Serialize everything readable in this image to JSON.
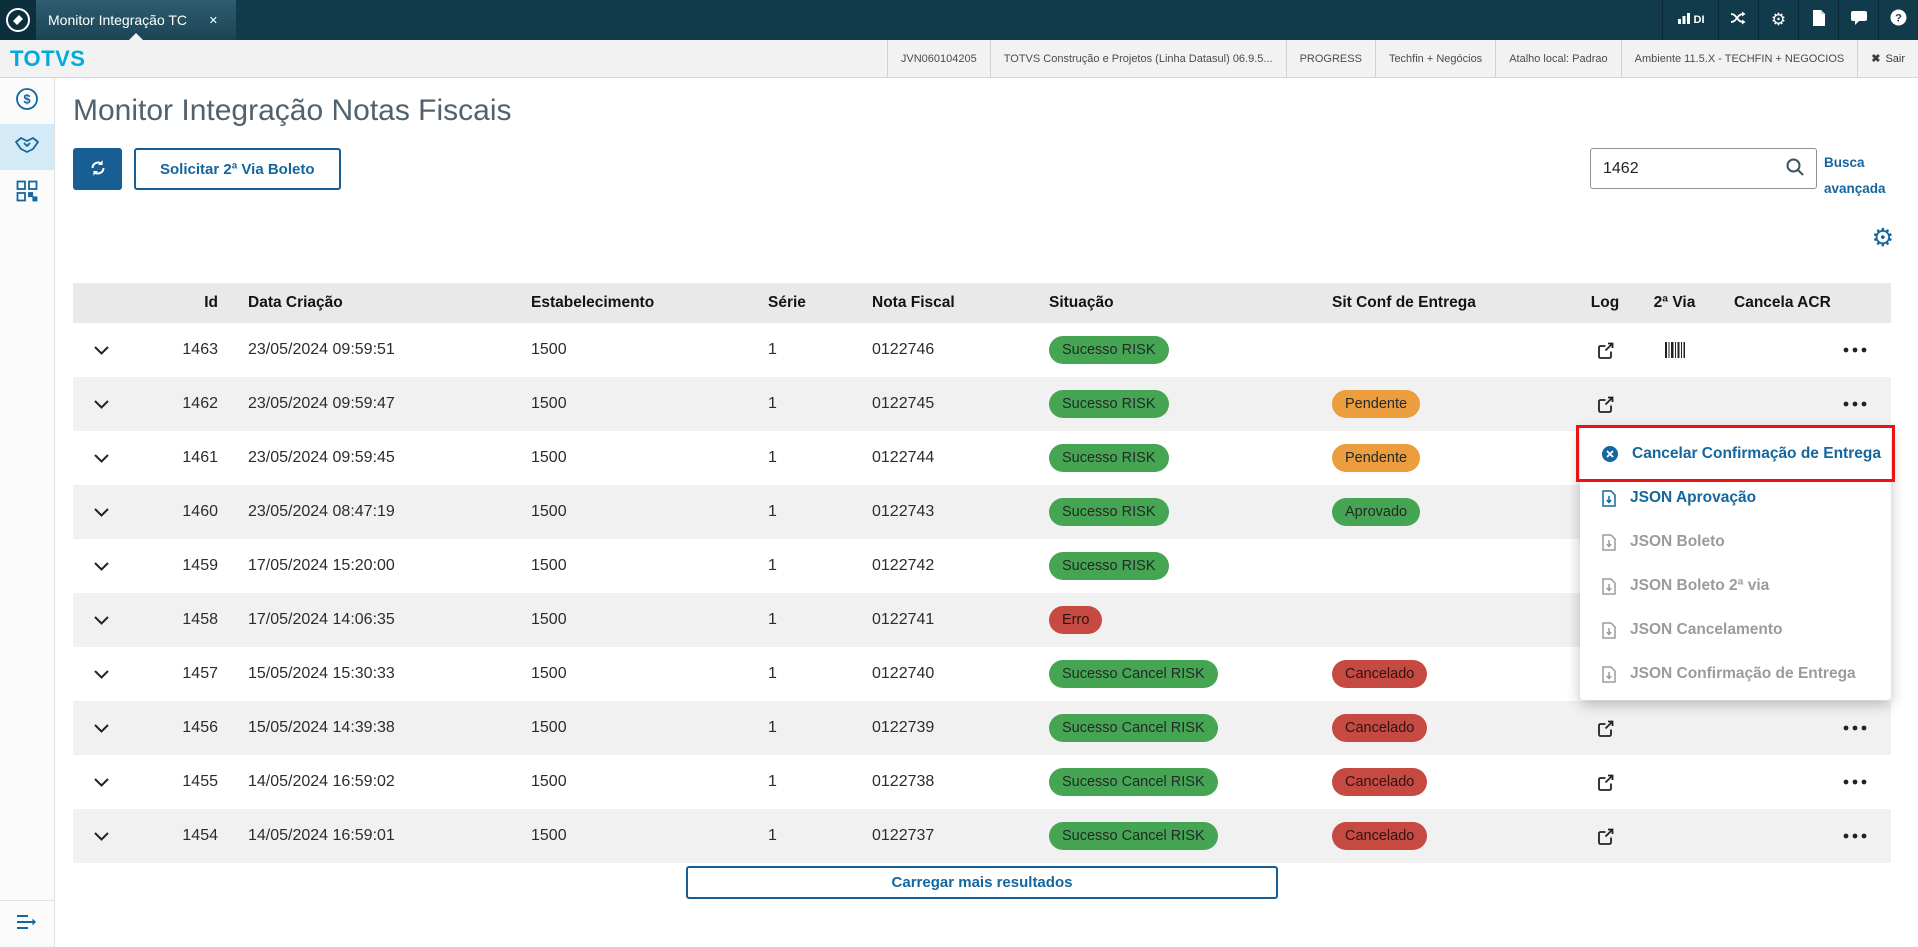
{
  "window": {
    "tab_title": "Monitor Integração TC",
    "close_glyph": "✕"
  },
  "topbar": {
    "stats_label": "DI",
    "icons": [
      "stats-icon",
      "shuffle-icon",
      "gear-icon",
      "document-icon",
      "chat-icon",
      "help-icon"
    ]
  },
  "header": {
    "brand": "TOTVS",
    "items": [
      "JVN060104205",
      "TOTVS Construção e Projetos (Linha Datasul) 06.9.5...",
      "PROGRESS",
      "Techfin + Negócios",
      "Atalho local: Padrao",
      "Ambiente 11.5.X - TECHFIN + NEGOCIOS"
    ],
    "logout_label": "Sair",
    "logout_glyph": "✖"
  },
  "sidebar": {
    "items": [
      {
        "icon": "dollar-circle-icon",
        "selected": false
      },
      {
        "icon": "handshake-icon",
        "selected": true
      },
      {
        "icon": "modules-grid-icon",
        "selected": false
      }
    ],
    "toggle_icon": "expand-menu-icon"
  },
  "page": {
    "title": "Monitor Integração Notas Fiscais",
    "refresh_button_icon": "sync-icon",
    "request_button_label": "Solicitar 2ª Via Boleto",
    "search": {
      "value": "1462",
      "icon": "search-icon"
    },
    "advanced_search_label": "Busca avançada",
    "grid_settings_icon": "gear-icon",
    "load_more_label": "Carregar mais resultados"
  },
  "table": {
    "headers": [
      "Id",
      "Data Criação",
      "Estabelecimento",
      "Série",
      "Nota Fiscal",
      "Situação",
      "Sit Conf de Entrega",
      "Log",
      "2ª Via",
      "Cancela ACR"
    ],
    "rows": [
      {
        "id": "1463",
        "created": "23/05/2024 09:59:51",
        "establishment": "1500",
        "series": "1",
        "invoice": "0122746",
        "status": {
          "label": "Sucesso RISK",
          "color": "green"
        },
        "delivery_status": null,
        "log": true,
        "second_copy_barcode": true
      },
      {
        "id": "1462",
        "created": "23/05/2024 09:59:47",
        "establishment": "1500",
        "series": "1",
        "invoice": "0122745",
        "status": {
          "label": "Sucesso RISK",
          "color": "green"
        },
        "delivery_status": {
          "label": "Pendente",
          "color": "orange"
        },
        "log": true,
        "second_copy_barcode": false
      },
      {
        "id": "1461",
        "created": "23/05/2024 09:59:45",
        "establishment": "1500",
        "series": "1",
        "invoice": "0122744",
        "status": {
          "label": "Sucesso RISK",
          "color": "green"
        },
        "delivery_status": {
          "label": "Pendente",
          "color": "orange"
        },
        "log": true,
        "second_copy_barcode": false
      },
      {
        "id": "1460",
        "created": "23/05/2024 08:47:19",
        "establishment": "1500",
        "series": "1",
        "invoice": "0122743",
        "status": {
          "label": "Sucesso RISK",
          "color": "green"
        },
        "delivery_status": {
          "label": "Aprovado",
          "color": "green"
        },
        "log": true,
        "second_copy_barcode": false
      },
      {
        "id": "1459",
        "created": "17/05/2024 15:20:00",
        "establishment": "1500",
        "series": "1",
        "invoice": "0122742",
        "status": {
          "label": "Sucesso RISK",
          "color": "green"
        },
        "delivery_status": null,
        "log": true,
        "second_copy_barcode": false
      },
      {
        "id": "1458",
        "created": "17/05/2024 14:06:35",
        "establishment": "1500",
        "series": "1",
        "invoice": "0122741",
        "status": {
          "label": "Erro",
          "color": "red"
        },
        "delivery_status": null,
        "log": true,
        "second_copy_barcode": false
      },
      {
        "id": "1457",
        "created": "15/05/2024 15:30:33",
        "establishment": "1500",
        "series": "1",
        "invoice": "0122740",
        "status": {
          "label": "Sucesso Cancel RISK",
          "color": "green"
        },
        "delivery_status": {
          "label": "Cancelado",
          "color": "red"
        },
        "log": true,
        "second_copy_barcode": false
      },
      {
        "id": "1456",
        "created": "15/05/2024 14:39:38",
        "establishment": "1500",
        "series": "1",
        "invoice": "0122739",
        "status": {
          "label": "Sucesso Cancel RISK",
          "color": "green"
        },
        "delivery_status": {
          "label": "Cancelado",
          "color": "red"
        },
        "log": true,
        "second_copy_barcode": false
      },
      {
        "id": "1455",
        "created": "14/05/2024 16:59:02",
        "establishment": "1500",
        "series": "1",
        "invoice": "0122738",
        "status": {
          "label": "Sucesso Cancel RISK",
          "color": "green"
        },
        "delivery_status": {
          "label": "Cancelado",
          "color": "red"
        },
        "log": true,
        "second_copy_barcode": false
      },
      {
        "id": "1454",
        "created": "14/05/2024 16:59:01",
        "establishment": "1500",
        "series": "1",
        "invoice": "0122737",
        "status": {
          "label": "Sucesso Cancel RISK",
          "color": "green"
        },
        "delivery_status": {
          "label": "Cancelado",
          "color": "red"
        },
        "log": true,
        "second_copy_barcode": false
      }
    ]
  },
  "context_menu": {
    "items": [
      {
        "label": "Cancelar Confirmação de Entrega",
        "icon": "cancel-circle",
        "enabled": true,
        "annotated": true
      },
      {
        "label": "JSON Aprovação",
        "icon": "json-file",
        "enabled": true,
        "annotated": false
      },
      {
        "label": "JSON Boleto",
        "icon": "json-file",
        "enabled": false,
        "annotated": false
      },
      {
        "label": "JSON Boleto 2ª via",
        "icon": "json-file",
        "enabled": false,
        "annotated": false
      },
      {
        "label": "JSON Cancelamento",
        "icon": "json-file",
        "enabled": false,
        "annotated": false
      },
      {
        "label": "JSON Confirmação de Entrega",
        "icon": "json-file",
        "enabled": false,
        "annotated": false
      }
    ]
  },
  "colors": {
    "topbar_bg": "#113b4b",
    "brand_cyan": "#00a9e0",
    "action_blue": "#14669e",
    "button_blue": "#175e95",
    "badge_green": "#46a552",
    "badge_orange": "#ec9d3d",
    "badge_red": "#c74a42",
    "annotation_red": "#e81313"
  }
}
